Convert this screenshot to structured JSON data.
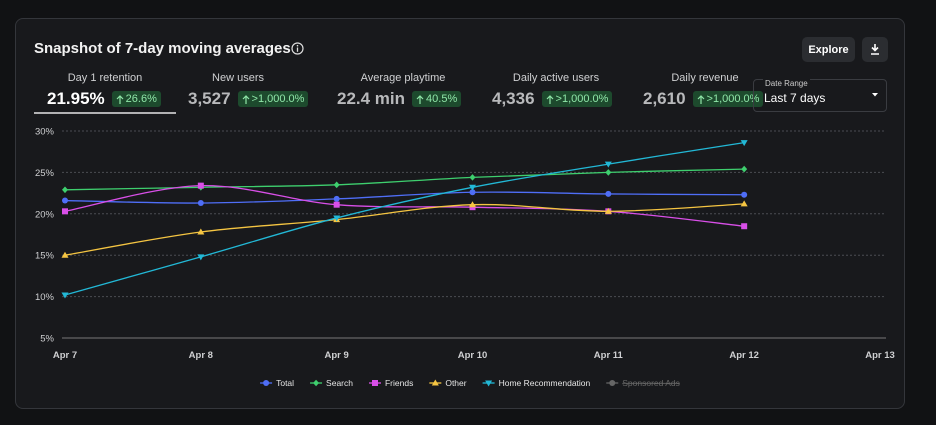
{
  "header": {
    "title": "Snapshot of 7-day moving averages",
    "buttons": [
      "Explore"
    ]
  },
  "kpis": [
    {
      "label": "Day 1 retention",
      "value": "21.95%",
      "change": "26.6%"
    },
    {
      "label": "New users",
      "value": "3,527",
      "change": ">1,000.0%"
    },
    {
      "label": "Average playtime",
      "value": "22.4 min",
      "change": "40.5%"
    },
    {
      "label": "Daily active users",
      "value": "4,336",
      "change": ">1,000.0%"
    },
    {
      "label": "Daily revenue",
      "value": "2,610",
      "change": ">1,000.0%"
    }
  ],
  "date_range": {
    "label": "Date Range",
    "value": "Last 7 days"
  },
  "chart_data": {
    "type": "line",
    "categories": [
      "Apr 7",
      "Apr 8",
      "Apr 9",
      "Apr 10",
      "Apr 11",
      "Apr 12",
      "Apr 13"
    ],
    "series": [
      {
        "name": "Total",
        "color": "#4f6ef7",
        "marker": "circle",
        "values": [
          21.6,
          21.3,
          21.8,
          22.6,
          22.4,
          22.3,
          null
        ]
      },
      {
        "name": "Search",
        "color": "#3ecf6e",
        "marker": "diamond",
        "values": [
          22.9,
          23.2,
          23.5,
          24.4,
          25.0,
          25.4,
          null
        ]
      },
      {
        "name": "Friends",
        "color": "#d94fe8",
        "marker": "square",
        "values": [
          20.3,
          23.4,
          21.1,
          20.8,
          20.3,
          18.5,
          null
        ]
      },
      {
        "name": "Other",
        "color": "#f5c542",
        "marker": "triangle-up",
        "values": [
          15.0,
          17.8,
          19.3,
          21.1,
          20.3,
          21.2,
          null
        ]
      },
      {
        "name": "Home Recommendation",
        "color": "#22b8d6",
        "marker": "triangle-down",
        "values": [
          10.2,
          14.8,
          19.5,
          23.2,
          26.0,
          28.6,
          null
        ]
      },
      {
        "name": "Sponsored Ads",
        "color": "#888888",
        "marker": "circle",
        "hidden": true,
        "values": [
          null,
          null,
          null,
          null,
          null,
          null,
          null
        ]
      }
    ],
    "ylim": [
      5,
      30
    ],
    "yticks": [
      {
        "value": 5,
        "label": "5%"
      },
      {
        "value": 10,
        "label": "10%"
      },
      {
        "value": 15,
        "label": "15%"
      },
      {
        "value": 20,
        "label": "20%"
      },
      {
        "value": 25,
        "label": "25%"
      },
      {
        "value": 30,
        "label": "30%"
      }
    ],
    "grid": true,
    "legend": "bottom"
  }
}
